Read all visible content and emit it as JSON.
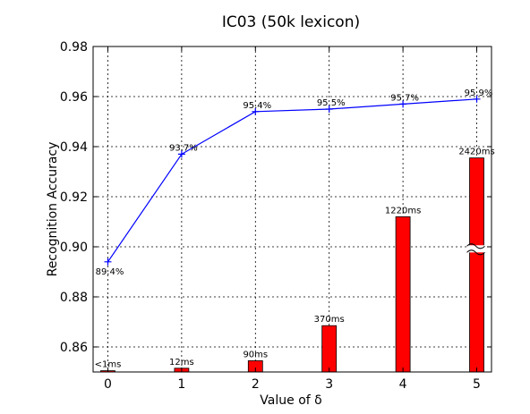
{
  "chart_data": {
    "type": "bar",
    "title": "IC03 (50k lexicon)",
    "xlabel": "Value of δ",
    "ylabel": "Recognition Accuracy",
    "x": [
      0,
      1,
      2,
      3,
      4,
      5
    ],
    "xlim": [
      -0.2,
      5.2
    ],
    "ylim": [
      0.85,
      0.98
    ],
    "yticks": [
      0.86,
      0.88,
      0.9,
      0.92,
      0.94,
      0.96,
      0.98
    ],
    "ytick_labels": [
      "0.86",
      "0.88",
      "0.90",
      "0.92",
      "0.94",
      "0.96",
      "0.98"
    ],
    "grid": true,
    "series": [
      {
        "kind": "line",
        "color": "#0000ff",
        "marker": "plus",
        "values": [
          0.894,
          0.937,
          0.954,
          0.955,
          0.957,
          0.959
        ],
        "labels": [
          "89.4%",
          "93.7%",
          "95.4%",
          "95.5%",
          "95.7%",
          "95.9%"
        ]
      },
      {
        "kind": "bar",
        "color": "#ff0000",
        "values": [
          0.8505,
          0.8515,
          0.8545,
          0.8685,
          0.912,
          0.9355
        ],
        "labels": [
          "<1ms",
          "12ms",
          "90ms",
          "370ms",
          "1220ms",
          "2420ms"
        ],
        "axis_break_on_last_bar": true
      }
    ]
  }
}
